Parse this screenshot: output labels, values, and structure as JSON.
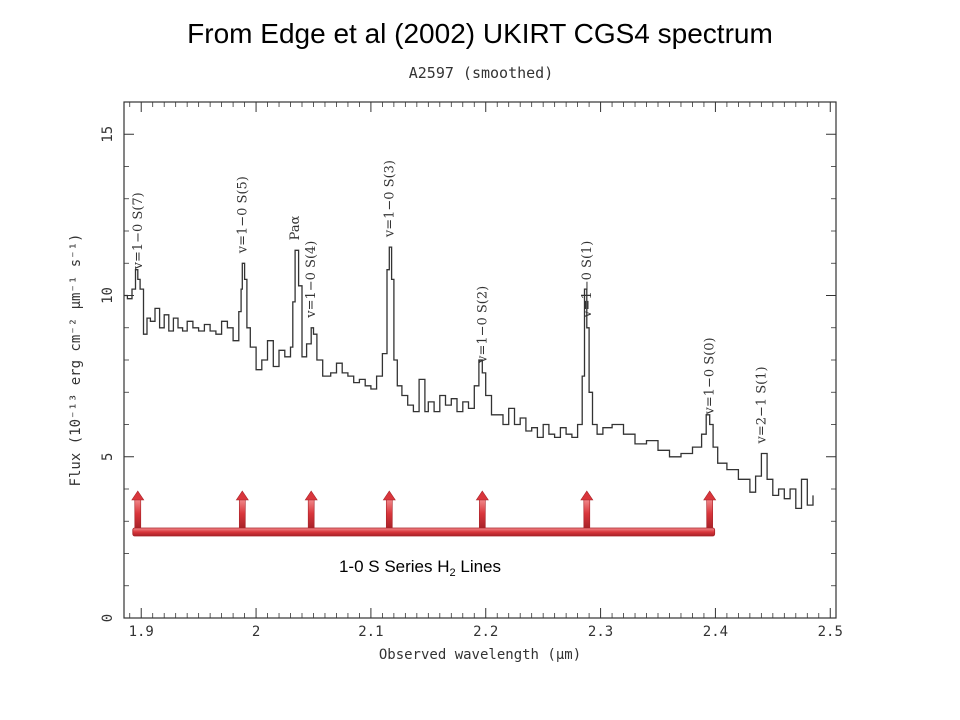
{
  "slide_title": "From Edge et al (2002) UKIRT CGS4 spectrum",
  "chart_data": {
    "type": "line",
    "title": "A2597 (smoothed)",
    "xlabel": "Observed wavelength (μm)",
    "ylabel": "Flux (10⁻¹³ erg cm⁻² μm⁻¹ s⁻¹)",
    "xlim": [
      1.885,
      2.505
    ],
    "ylim": [
      0,
      16
    ],
    "x_ticks": [
      1.9,
      2,
      2.1,
      2.2,
      2.3,
      2.4,
      2.5
    ],
    "x_tick_labels": [
      "1.9",
      "2",
      "2.1",
      "2.2",
      "2.3",
      "2.4",
      "2.5"
    ],
    "y_ticks": [
      0,
      5,
      10,
      15
    ],
    "y_tick_labels": [
      "0",
      "5",
      "10",
      "15"
    ],
    "series": [
      {
        "x": [
          1.885,
          1.888,
          1.892,
          1.895,
          1.897,
          1.899,
          1.902,
          1.905,
          1.908,
          1.912,
          1.916,
          1.92,
          1.924,
          1.928,
          1.932,
          1.936,
          1.94,
          1.945,
          1.95,
          1.955,
          1.96,
          1.965,
          1.97,
          1.975,
          1.98,
          1.985,
          1.987,
          1.988,
          1.99,
          1.992,
          1.995,
          2.0,
          2.005,
          2.01,
          2.015,
          2.02,
          2.025,
          2.03,
          2.032,
          2.034,
          2.037,
          2.04,
          2.044,
          2.048,
          2.05,
          2.053,
          2.058,
          2.065,
          2.07,
          2.075,
          2.08,
          2.085,
          2.09,
          2.095,
          2.1,
          2.105,
          2.11,
          2.114,
          2.116,
          2.118,
          2.12,
          2.123,
          2.127,
          2.132,
          2.137,
          2.142,
          2.147,
          2.15,
          2.155,
          2.16,
          2.165,
          2.17,
          2.175,
          2.18,
          2.185,
          2.19,
          2.194,
          2.197,
          2.2,
          2.205,
          2.21,
          2.215,
          2.22,
          2.225,
          2.23,
          2.235,
          2.24,
          2.245,
          2.25,
          2.255,
          2.26,
          2.265,
          2.27,
          2.275,
          2.28,
          2.284,
          2.286,
          2.288,
          2.29,
          2.293,
          2.297,
          2.302,
          2.31,
          2.32,
          2.33,
          2.34,
          2.35,
          2.36,
          2.37,
          2.38,
          2.388,
          2.392,
          2.395,
          2.398,
          2.402,
          2.41,
          2.42,
          2.43,
          2.435,
          2.44,
          2.445,
          2.45,
          2.455,
          2.46,
          2.465,
          2.47,
          2.475,
          2.48,
          2.485
        ],
        "y": [
          10.0,
          9.9,
          10.2,
          10.8,
          10.5,
          10.2,
          8.8,
          9.3,
          9.2,
          9.6,
          9.0,
          9.4,
          8.9,
          9.3,
          9.0,
          8.9,
          9.2,
          9.0,
          8.9,
          9.1,
          8.9,
          8.8,
          9.2,
          9.0,
          8.6,
          9.5,
          10.2,
          11.0,
          10.5,
          9.0,
          8.4,
          7.7,
          8.0,
          8.6,
          7.8,
          8.3,
          8.1,
          8.4,
          9.8,
          11.4,
          10.3,
          8.1,
          8.5,
          9.0,
          8.8,
          8.0,
          7.5,
          7.6,
          7.9,
          7.6,
          7.5,
          7.3,
          7.4,
          7.2,
          7.1,
          7.5,
          8.2,
          10.8,
          11.5,
          10.5,
          8.0,
          7.2,
          6.9,
          6.6,
          6.4,
          7.4,
          6.4,
          6.7,
          6.4,
          6.9,
          6.6,
          6.8,
          6.4,
          6.7,
          6.5,
          7.2,
          8.0,
          7.6,
          6.9,
          6.3,
          6.3,
          6.0,
          6.5,
          6.0,
          6.2,
          5.8,
          5.9,
          5.6,
          6.0,
          5.7,
          5.6,
          5.9,
          5.7,
          5.6,
          6.0,
          7.5,
          10.2,
          9.0,
          7.0,
          6.0,
          5.7,
          5.9,
          6.0,
          5.7,
          5.4,
          5.5,
          5.2,
          5.0,
          5.1,
          5.3,
          5.7,
          6.3,
          6.0,
          5.3,
          4.8,
          4.6,
          4.3,
          3.9,
          4.4,
          5.1,
          4.3,
          3.8,
          4.0,
          3.7,
          4.0,
          3.4,
          4.3,
          3.5,
          3.8
        ]
      }
    ],
    "line_labels": [
      {
        "text": "v=1−0 S(7)",
        "x": 1.897
      },
      {
        "text": "v=1−0 S(5)",
        "x": 1.988
      },
      {
        "text": "Paα",
        "x": 2.034
      },
      {
        "text": "v=1−0 S(4)",
        "x": 2.048
      },
      {
        "text": "v=1−0 S(3)",
        "x": 2.116
      },
      {
        "text": "v=1−0 S(2)",
        "x": 2.197
      },
      {
        "text": "v=1−0 S(1)",
        "x": 2.288
      },
      {
        "text": "v=1−0 S(0)",
        "x": 2.395
      },
      {
        "text": "v=2−1 S(1)",
        "x": 2.44
      }
    ],
    "marker_annotation": {
      "label": "1-0 S Series H",
      "subscript": "2",
      "label_suffix": " Lines",
      "arrow_x": [
        1.897,
        1.988,
        2.048,
        2.116,
        2.197,
        2.288,
        2.395
      ],
      "color": "#d9464a"
    },
    "grid": false
  }
}
